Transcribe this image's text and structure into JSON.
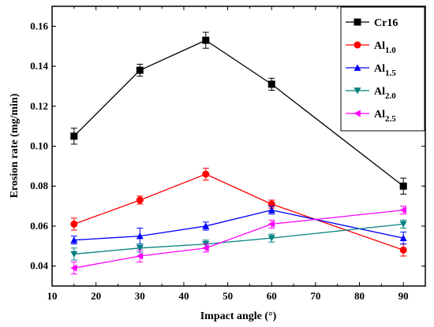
{
  "chart_data": {
    "type": "line",
    "title": "",
    "xlabel": "Impact angle (°)",
    "ylabel": "Erosion rate (mg/min)",
    "xlim": [
      10,
      95
    ],
    "ylim": [
      0.03,
      0.17
    ],
    "x_ticks": [
      10,
      20,
      30,
      40,
      50,
      60,
      70,
      80,
      90
    ],
    "y_ticks": [
      0.04,
      0.06,
      0.08,
      0.1,
      0.12,
      0.14,
      0.16
    ],
    "x_tick_labels": [
      "10",
      "20",
      "30",
      "40",
      "50",
      "60",
      "70",
      "80",
      "90"
    ],
    "y_tick_labels": [
      "0.04",
      "0.06",
      "0.08",
      "0.10",
      "0.12",
      "0.14",
      "0.16"
    ],
    "grid": false,
    "legend_position": "top-right",
    "x": [
      15,
      30,
      45,
      60,
      90
    ],
    "series": [
      {
        "name": "Cr16",
        "name_base": "Cr16",
        "name_sub": "",
        "color": "#000000",
        "marker": "square",
        "values": [
          0.105,
          0.138,
          0.153,
          0.131,
          0.08
        ],
        "errors": [
          0.004,
          0.003,
          0.004,
          0.003,
          0.004
        ]
      },
      {
        "name": "Al1.0",
        "name_base": "Al",
        "name_sub": "1.0",
        "color": "#ff0000",
        "marker": "circle",
        "values": [
          0.061,
          0.073,
          0.086,
          0.071,
          0.048
        ],
        "errors": [
          0.003,
          0.002,
          0.003,
          0.002,
          0.003
        ]
      },
      {
        "name": "Al1.5",
        "name_base": "Al",
        "name_sub": "1.5",
        "color": "#0000ff",
        "marker": "triangle-up",
        "values": [
          0.053,
          0.055,
          0.06,
          0.068,
          0.054
        ],
        "errors": [
          0.002,
          0.004,
          0.002,
          0.002,
          0.003
        ]
      },
      {
        "name": "Al2.0",
        "name_base": "Al",
        "name_sub": "2.0",
        "color": "#008080",
        "marker": "triangle-down",
        "values": [
          0.046,
          0.049,
          0.051,
          0.054,
          0.061
        ],
        "errors": [
          0.003,
          0.002,
          0.002,
          0.002,
          0.002
        ]
      },
      {
        "name": "Al2.5",
        "name_base": "Al",
        "name_sub": "2.5",
        "color": "#ff00ff",
        "marker": "triangle-left",
        "values": [
          0.039,
          0.045,
          0.049,
          0.061,
          0.068
        ],
        "errors": [
          0.003,
          0.003,
          0.002,
          0.002,
          0.002
        ]
      }
    ]
  }
}
